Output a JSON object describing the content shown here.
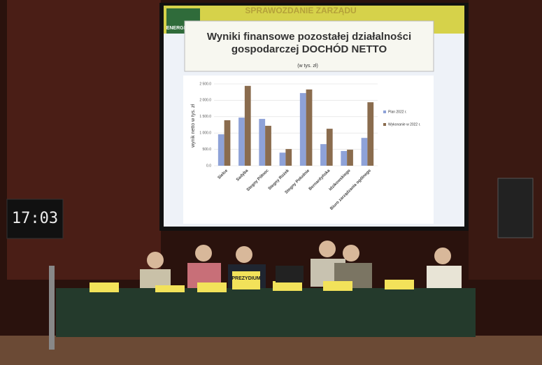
{
  "scene": {
    "header": "SPRAWOZDANIE ZARZĄDU",
    "logo": "ENERGETYKA",
    "clock": "17:03",
    "sign": "PREZYDIUM"
  },
  "chart_data": {
    "type": "bar",
    "title": "Wyniki finansowe pozostałej działalności gospodarczej DOCHÓD NETTO",
    "subtitle": "(w tys. zł)",
    "y_label": "wynik netto w tys. zł",
    "categories": [
      "Sielce",
      "Sadyba",
      "Stegny Północ",
      "Stegny Rożek",
      "Stegny Południe",
      "Bernardyńska",
      "Idzikowskiego",
      "Biuro zarządzania ogólnego"
    ],
    "series": [
      {
        "name": "Plan 2022 r.",
        "color": "#8ea2d8",
        "values": [
          960,
          1470,
          1430,
          400,
          2220,
          660,
          450,
          850
        ]
      },
      {
        "name": "Wykonanie w 2022 r.",
        "color": "#8a6c4e",
        "values": [
          1390,
          2440,
          1220,
          510,
          2330,
          1130,
          490,
          1940
        ]
      }
    ],
    "ylim": [
      0,
      2500
    ],
    "yticks": [
      {
        "value": 0,
        "label": "0.0"
      },
      {
        "value": 500,
        "label": "500.0"
      },
      {
        "value": 1000,
        "label": "1 000.0"
      },
      {
        "value": 1500,
        "label": "1 500.0"
      },
      {
        "value": 2000,
        "label": "2 000.0"
      },
      {
        "value": 2500,
        "label": "2 500.0"
      }
    ],
    "grid": true,
    "legend": "right"
  }
}
